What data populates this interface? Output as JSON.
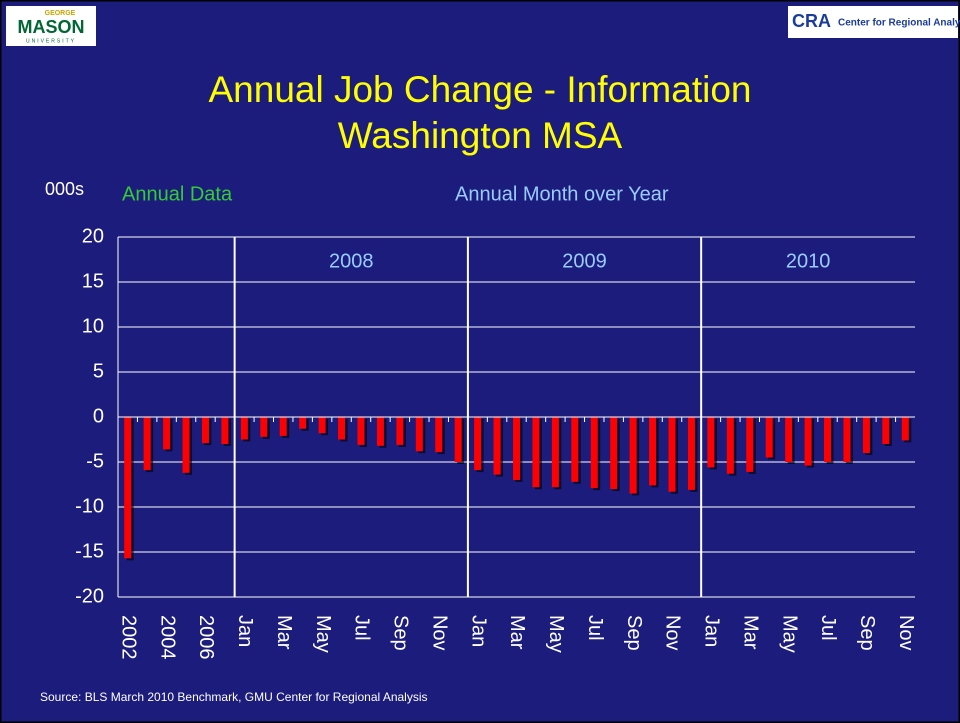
{
  "logos": {
    "left_top": "GEORGE",
    "left": "MASON",
    "left_bottom": "UNIVERSITY",
    "right_mark": "CRA",
    "right": "Center for Regional Analysis"
  },
  "chart_data": {
    "type": "bar",
    "title": "Annual Job Change - Information",
    "subtitle": "Washington MSA",
    "y_label": "000s",
    "annotations": [
      "Annual Data",
      "Annual Month over Year"
    ],
    "section_labels": [
      "2008",
      "2009",
      "2010"
    ],
    "source": "Source: BLS March 2010 Benchmark, GMU Center for Regional Analysis",
    "categories": [
      "2002",
      null,
      "2004",
      null,
      "2006",
      null,
      "Jan",
      null,
      "Mar",
      null,
      "May",
      null,
      "Jul",
      null,
      "Sep",
      null,
      "Nov",
      null,
      "Jan",
      null,
      "Mar",
      null,
      "May",
      null,
      "Jul",
      null,
      "Sep",
      null,
      "Nov",
      null,
      "Jan",
      null,
      "Mar",
      null,
      "May",
      null,
      "Jul",
      null,
      "Sep",
      null,
      "Nov"
    ],
    "values": [
      -15.7,
      -5.9,
      -3.6,
      -6.2,
      -2.9,
      -3.0,
      -2.5,
      -2.2,
      -2.1,
      -1.3,
      -1.8,
      -2.5,
      -3.1,
      -3.2,
      -3.1,
      -3.8,
      -3.9,
      -5.0,
      -5.9,
      -6.4,
      -7.0,
      -7.8,
      -7.8,
      -7.2,
      -7.9,
      -8.0,
      -8.5,
      -7.6,
      -8.3,
      -8.1,
      -5.6,
      -6.3,
      -6.1,
      -4.5,
      -5.0,
      -5.4,
      -5.0,
      -5.0,
      -4.0,
      -3.0,
      -2.6
    ],
    "color": "#ff0000",
    "ylim": [
      -20,
      20
    ],
    "yticks": [
      -20,
      -15,
      -10,
      -5,
      0,
      5,
      10,
      15,
      20
    ],
    "grid": true
  }
}
